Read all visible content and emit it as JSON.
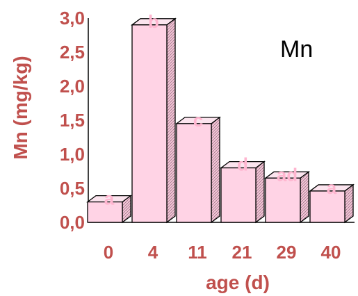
{
  "chart_data": {
    "type": "bar",
    "title": "Mn",
    "xlabel": "age (d)",
    "ylabel": "Mn (mg/kg)",
    "categories": [
      "0",
      "4",
      "11",
      "21",
      "29",
      "40"
    ],
    "values": [
      0.3,
      2.9,
      1.45,
      0.8,
      0.65,
      0.46
    ],
    "significance_labels": [
      "a",
      "b",
      "c",
      "d",
      "ad",
      "a"
    ],
    "yticks": [
      "0,0",
      "0,5",
      "1,0",
      "1,5",
      "2,0",
      "2,5",
      "3,0"
    ],
    "ylim": [
      0,
      3
    ],
    "grid": false,
    "style": "3d",
    "colors": {
      "bar_front": "#ffd3e5",
      "bar_top": "#fbe4ee",
      "bar_side": "#f3c3d6",
      "text": "#c0504d",
      "sig_label": "#ffb6d0",
      "axis": "#000000"
    }
  }
}
